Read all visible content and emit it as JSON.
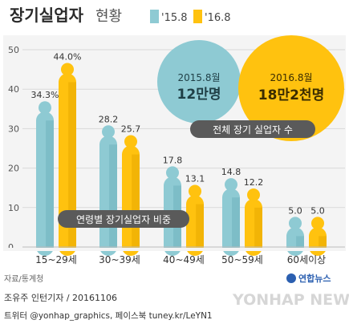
{
  "header": {
    "title_bold": "장기실업자",
    "title_light": "현황"
  },
  "chart_data": {
    "type": "bar",
    "title": "장기실업자 현황",
    "categories": [
      "15~29세",
      "30~39세",
      "40~49세",
      "50~59세",
      "60세이상"
    ],
    "series": [
      {
        "name": "'15.8",
        "values": [
          34.3,
          28.2,
          17.8,
          14.8,
          5.0
        ],
        "color": "#8ecad3"
      },
      {
        "name": "'16.8",
        "values": [
          44.0,
          25.7,
          13.1,
          12.2,
          5.0
        ],
        "color": "#ffc20f"
      }
    ],
    "value_labels": [
      [
        "34.3%",
        "28.2",
        "17.8",
        "14.8",
        "5.0"
      ],
      [
        "44.0%",
        "25.7",
        "13.1",
        "12.2",
        "5.0"
      ]
    ],
    "ylim": [
      0,
      50
    ],
    "yticks": [
      "0",
      "10",
      "20",
      "30",
      "40",
      "50"
    ],
    "grid": true,
    "legend_position": "top-right",
    "annotation": "연령별 장기실업자 비중"
  },
  "totals": {
    "y2015_label": "2015.8월",
    "y2015_value": "12만명",
    "y2016_label": "2016.8월",
    "y2016_value": "18만2천명",
    "caption": "전체 장기 실업자 수"
  },
  "footer": {
    "source": "자료/통계청",
    "brand": "연합뉴스",
    "credit": "조유주 인턴기자 / 20161106",
    "sns": "트위터 @yonhap_graphics, 페이스북 tuney.kr/LeYN1",
    "watermark": "YONHAP NEWS"
  },
  "colors": {
    "teal": "#8ecad3",
    "yellow": "#ffc20f",
    "grid": "#d9d9d9",
    "label": "#555555",
    "caption_box": "#5a5a5a",
    "panel_bg": "#f4f4f4"
  }
}
